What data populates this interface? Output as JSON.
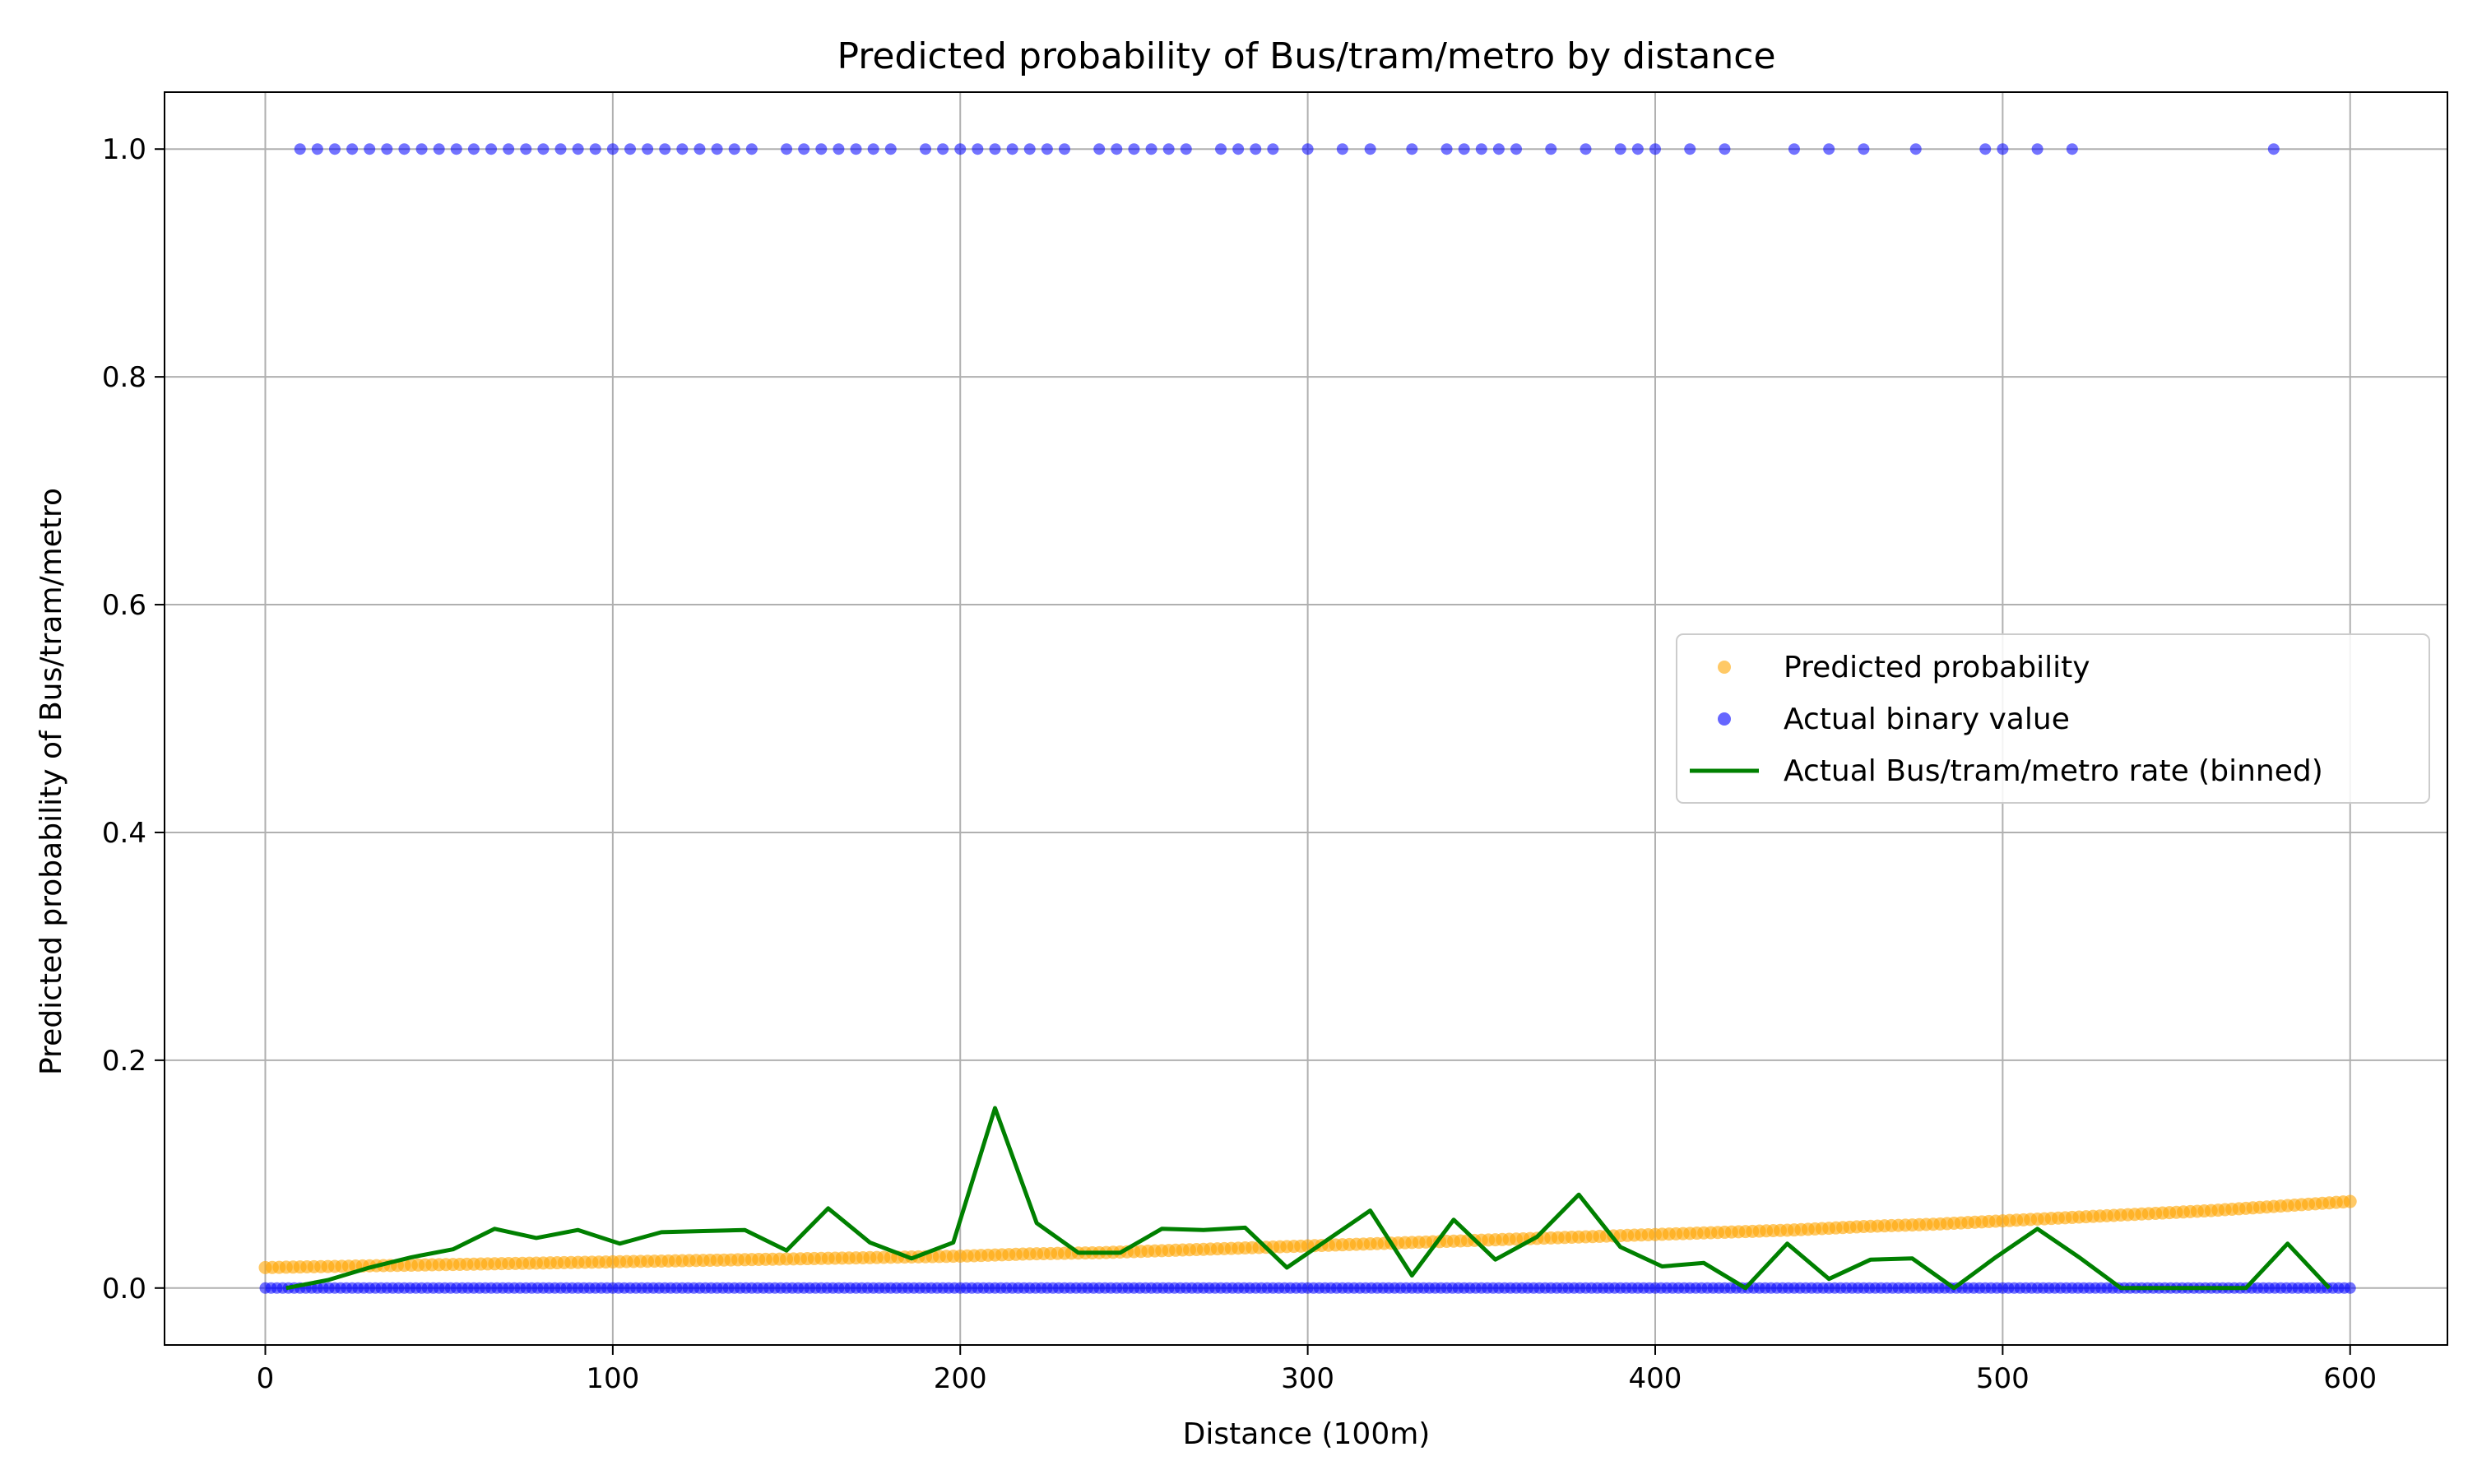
{
  "chart_data": {
    "type": "scatter",
    "title": "Predicted probability of Bus/tram/metro by distance",
    "xlabel": "Distance (100m)",
    "ylabel": "Predicted probability of Bus/tram/metro",
    "xlim": [
      -29,
      628
    ],
    "ylim": [
      -0.05,
      1.05
    ],
    "xticks": [
      0,
      100,
      200,
      300,
      400,
      500,
      600
    ],
    "xtick_labels": [
      "0",
      "100",
      "200",
      "300",
      "400",
      "500",
      "600"
    ],
    "yticks": [
      0.0,
      0.2,
      0.4,
      0.6,
      0.8,
      1.0
    ],
    "ytick_labels": [
      "0.0",
      "0.2",
      "0.4",
      "0.6",
      "0.8",
      "1.0"
    ],
    "grid": true,
    "legend_placement": "center-right",
    "colors": {
      "predicted": "#FFA500",
      "actual": "#0000FF",
      "binned": "#008000",
      "grid": "#b0b0b0"
    },
    "legend": [
      {
        "label": "Predicted probability",
        "kind": "marker",
        "color": "#FFA500"
      },
      {
        "label": "Actual binary value",
        "kind": "marker",
        "color": "#0000FF"
      },
      {
        "label": "Actual Bus/tram/metro rate (binned)",
        "kind": "line",
        "color": "#008000"
      }
    ],
    "series": [
      {
        "name": "Predicted probability",
        "kind": "scatter",
        "x": [
          0,
          20,
          40,
          60,
          80,
          100,
          120,
          140,
          160,
          180,
          200,
          220,
          240,
          260,
          280,
          300,
          320,
          340,
          360,
          380,
          400,
          420,
          440,
          460,
          480,
          500,
          520,
          540,
          560,
          580,
          600
        ],
        "y": [
          0.018,
          0.019,
          0.02,
          0.021,
          0.022,
          0.023,
          0.024,
          0.025,
          0.026,
          0.027,
          0.028,
          0.03,
          0.031,
          0.033,
          0.035,
          0.037,
          0.039,
          0.041,
          0.043,
          0.045,
          0.047,
          0.049,
          0.051,
          0.054,
          0.056,
          0.059,
          0.062,
          0.065,
          0.068,
          0.072,
          0.076
        ]
      },
      {
        "name": "Actual binary value",
        "kind": "scatter",
        "x": [
          10,
          15,
          20,
          25,
          30,
          35,
          40,
          45,
          50,
          55,
          60,
          65,
          70,
          75,
          80,
          85,
          90,
          95,
          100,
          105,
          110,
          115,
          120,
          125,
          130,
          135,
          140,
          150,
          155,
          160,
          165,
          170,
          175,
          180,
          190,
          195,
          200,
          205,
          210,
          215,
          220,
          225,
          230,
          240,
          245,
          250,
          255,
          260,
          265,
          275,
          280,
          285,
          290,
          300,
          310,
          318,
          330,
          340,
          345,
          350,
          355,
          360,
          370,
          380,
          390,
          395,
          400,
          410,
          420,
          440,
          450,
          460,
          475,
          495,
          500,
          510,
          520,
          578,
          0,
          10,
          20,
          30,
          40,
          50,
          60,
          70,
          80,
          90,
          100,
          110,
          120,
          130,
          140,
          150,
          160,
          170,
          180,
          190,
          200,
          210,
          220,
          230,
          240,
          250,
          260,
          270,
          280,
          290,
          300,
          310,
          320,
          330,
          340,
          350,
          360,
          370,
          380,
          390,
          400,
          410,
          420,
          430,
          440,
          450,
          460,
          470,
          480,
          490,
          500,
          510,
          520,
          530,
          540,
          550,
          560,
          570,
          580,
          590,
          600
        ],
        "y": [
          1,
          1,
          1,
          1,
          1,
          1,
          1,
          1,
          1,
          1,
          1,
          1,
          1,
          1,
          1,
          1,
          1,
          1,
          1,
          1,
          1,
          1,
          1,
          1,
          1,
          1,
          1,
          1,
          1,
          1,
          1,
          1,
          1,
          1,
          1,
          1,
          1,
          1,
          1,
          1,
          1,
          1,
          1,
          1,
          1,
          1,
          1,
          1,
          1,
          1,
          1,
          1,
          1,
          1,
          1,
          1,
          1,
          1,
          1,
          1,
          1,
          1,
          1,
          1,
          1,
          1,
          1,
          1,
          1,
          1,
          1,
          1,
          1,
          1,
          1,
          1,
          1,
          1,
          0,
          0,
          0,
          0,
          0,
          0,
          0,
          0,
          0,
          0,
          0,
          0,
          0,
          0,
          0,
          0,
          0,
          0,
          0,
          0,
          0,
          0,
          0,
          0,
          0,
          0,
          0,
          0,
          0,
          0,
          0,
          0,
          0,
          0,
          0,
          0,
          0,
          0,
          0,
          0,
          0,
          0,
          0,
          0,
          0,
          0,
          0,
          0,
          0,
          0,
          0,
          0,
          0,
          0,
          0,
          0,
          0,
          0,
          0,
          0,
          0
        ]
      },
      {
        "name": "Actual Bus/tram/metro rate (binned)",
        "kind": "line",
        "x": [
          6,
          18,
          30,
          42,
          54,
          66,
          78,
          90,
          102,
          114,
          126,
          138,
          150,
          162,
          174,
          186,
          198,
          210,
          222,
          234,
          246,
          258,
          270,
          282,
          294,
          306,
          318,
          330,
          342,
          354,
          366,
          378,
          390,
          402,
          414,
          426,
          438,
          450,
          462,
          474,
          486,
          498,
          510,
          522,
          534,
          546,
          558,
          570,
          582,
          594
        ],
        "y": [
          0.0,
          0.007,
          0.018,
          0.027,
          0.034,
          0.052,
          0.044,
          0.051,
          0.039,
          0.049,
          0.05,
          0.051,
          0.033,
          0.07,
          0.04,
          0.026,
          0.04,
          0.158,
          0.057,
          0.031,
          0.031,
          0.052,
          0.051,
          0.053,
          0.018,
          0.043,
          0.068,
          0.011,
          0.06,
          0.025,
          0.045,
          0.082,
          0.036,
          0.019,
          0.022,
          0.0,
          0.039,
          0.008,
          0.025,
          0.026,
          0.0,
          0.027,
          0.052,
          0.027,
          0.0,
          0.0,
          0.0,
          0.0,
          0.039,
          0.0
        ]
      }
    ]
  }
}
